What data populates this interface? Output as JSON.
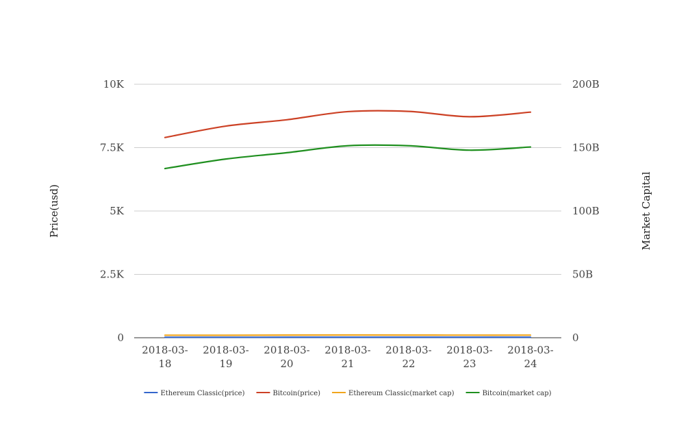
{
  "chart_data": {
    "type": "line",
    "categories": [
      "2018-03-18",
      "2018-03-19",
      "2018-03-20",
      "2018-03-21",
      "2018-03-22",
      "2018-03-23",
      "2018-03-24"
    ],
    "category_labels": [
      [
        "2018-03-",
        "18"
      ],
      [
        "2018-03-",
        "19"
      ],
      [
        "2018-03-",
        "20"
      ],
      [
        "2018-03-",
        "21"
      ],
      [
        "2018-03-",
        "22"
      ],
      [
        "2018-03-",
        "23"
      ],
      [
        "2018-03-",
        "24"
      ]
    ],
    "y_left": {
      "label": "Price(usd)",
      "lim": [
        0,
        10000
      ],
      "ticks": [
        0,
        2500,
        5000,
        7500,
        10000
      ],
      "tick_labels": [
        "0",
        "2.5K",
        "5K",
        "7.5K",
        "10K"
      ]
    },
    "y_right": {
      "label": "Market Capital",
      "lim": [
        0,
        200000000000
      ],
      "ticks": [
        0,
        50000000000,
        100000000000,
        150000000000,
        200000000000
      ],
      "tick_labels": [
        "0",
        "50B",
        "100B",
        "150B",
        "200B"
      ]
    },
    "grid": true,
    "legend_position": "bottom",
    "series": [
      {
        "name": "Ethereum Classic(price)",
        "axis": "left",
        "color": "#3366cc",
        "values": [
          18,
          18.5,
          19.5,
          20,
          19.8,
          19.5,
          19.4
        ]
      },
      {
        "name": "Bitcoin(price)",
        "axis": "left",
        "color": "#cc4125",
        "values": [
          7900,
          8350,
          8600,
          8920,
          8930,
          8720,
          8900
        ]
      },
      {
        "name": "Ethereum Classic(market cap)",
        "axis": "right",
        "color": "#f1a51c",
        "values": [
          2000000000,
          1950000000,
          2100000000,
          2150000000,
          2100000000,
          2050000000,
          2050000000
        ]
      },
      {
        "name": "Bitcoin(market cap)",
        "axis": "right",
        "color": "#1f8f1f",
        "values": [
          133500000000,
          141000000000,
          146000000000,
          151500000000,
          151500000000,
          148000000000,
          150500000000
        ]
      }
    ]
  }
}
